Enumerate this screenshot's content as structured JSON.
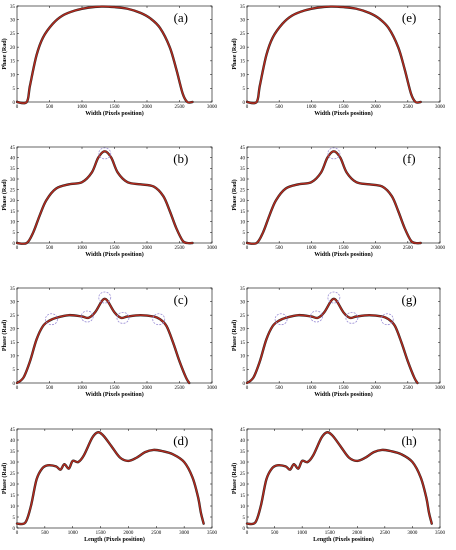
{
  "chart_data": [
    {
      "type": "line",
      "label": "(a)",
      "xlabel": "Width (Pixels position)",
      "ylabel": "Phase (Rad)",
      "xlim": [
        0,
        3000
      ],
      "ylim": [
        0,
        35
      ],
      "xticks": [
        0,
        500,
        1000,
        1500,
        2000,
        2500,
        3000
      ],
      "yticks": [
        0,
        5,
        10,
        15,
        20,
        25,
        30,
        35
      ],
      "series": [
        {
          "color": "#b22a1e",
          "x": [
            0,
            150,
            200,
            300,
            400,
            550,
            700,
            900,
            1100,
            1300,
            1500,
            1700,
            1900,
            2050,
            2200,
            2350,
            2450,
            2550,
            2620,
            2700
          ],
          "y": [
            0,
            0,
            6,
            17,
            23.5,
            28.5,
            31.5,
            33.4,
            34.4,
            34.8,
            34.6,
            34,
            32.5,
            30.5,
            27,
            20,
            12,
            3,
            0,
            0
          ]
        }
      ]
    },
    {
      "type": "line",
      "label": "(e)",
      "xlabel": "Width (Pixels position)",
      "ylabel": "Phase (Rad)",
      "xlim": [
        0,
        3000
      ],
      "ylim": [
        0,
        35
      ],
      "xticks": [
        0,
        500,
        1000,
        1500,
        2000,
        2500,
        3000
      ],
      "yticks": [
        0,
        5,
        10,
        15,
        20,
        25,
        30,
        35
      ],
      "series": [
        {
          "color": "#b22a1e",
          "x": [
            0,
            150,
            200,
            300,
            400,
            550,
            700,
            900,
            1100,
            1300,
            1500,
            1700,
            1900,
            2050,
            2200,
            2350,
            2450,
            2550,
            2620,
            2700
          ],
          "y": [
            0,
            0,
            6,
            17,
            23.5,
            28.5,
            31.5,
            33.4,
            34.4,
            34.8,
            34.6,
            34,
            32.5,
            30.5,
            27,
            20,
            12,
            3,
            0,
            0
          ]
        }
      ]
    },
    {
      "type": "line",
      "label": "(b)",
      "xlabel": "Width (Pixels position)",
      "ylabel": "Phase (Rad)",
      "xlim": [
        0,
        3000
      ],
      "ylim": [
        0,
        45
      ],
      "xticks": [
        0,
        500,
        1000,
        1500,
        2000,
        2500,
        3000
      ],
      "yticks": [
        0,
        5,
        10,
        15,
        20,
        25,
        30,
        35,
        40,
        45
      ],
      "series": [
        {
          "color": "#b22a1e",
          "x": [
            0,
            150,
            250,
            350,
            450,
            600,
            800,
            1000,
            1150,
            1250,
            1350,
            1450,
            1550,
            1700,
            1900,
            2100,
            2250,
            2350,
            2450,
            2550,
            2620,
            2700
          ],
          "y": [
            0,
            0,
            5,
            13,
            20,
            25.5,
            27.5,
            28.5,
            33,
            40,
            43,
            40,
            33,
            28.5,
            27.5,
            26.5,
            22,
            15,
            7,
            1,
            0,
            0
          ]
        }
      ],
      "circles": [
        {
          "x": 1350,
          "y": 42
        }
      ]
    },
    {
      "type": "line",
      "label": "(f)",
      "xlabel": "Width (Pixels position)",
      "ylabel": "Phase (Rad)",
      "xlim": [
        0,
        3000
      ],
      "ylim": [
        0,
        45
      ],
      "xticks": [
        0,
        500,
        1000,
        1500,
        2000,
        2500,
        3000
      ],
      "yticks": [
        0,
        5,
        10,
        15,
        20,
        25,
        30,
        35,
        40,
        45
      ],
      "series": [
        {
          "color": "#b22a1e",
          "x": [
            0,
            150,
            250,
            350,
            450,
            600,
            800,
            1000,
            1150,
            1250,
            1350,
            1450,
            1550,
            1700,
            1900,
            2100,
            2250,
            2350,
            2450,
            2550,
            2620,
            2700
          ],
          "y": [
            0,
            0,
            5,
            13,
            20,
            25.5,
            27.5,
            28.5,
            33,
            40,
            43,
            40,
            33,
            28.5,
            27.5,
            26.5,
            22,
            15,
            7,
            1,
            0,
            0
          ]
        }
      ],
      "circles": [
        {
          "x": 1350,
          "y": 42
        }
      ]
    },
    {
      "type": "line",
      "label": "(c)",
      "xlabel": "Width (Pixels position)",
      "ylabel": "Phase (Rad)",
      "xlim": [
        0,
        3000
      ],
      "ylim": [
        0,
        35
      ],
      "xticks": [
        0,
        500,
        1000,
        1500,
        2000,
        2500,
        3000
      ],
      "yticks": [
        0,
        5,
        10,
        15,
        20,
        25,
        30,
        35
      ],
      "series": [
        {
          "color": "#b22a1e",
          "x": [
            0,
            100,
            200,
            300,
            400,
            500,
            600,
            800,
            1000,
            1100,
            1200,
            1300,
            1350,
            1400,
            1500,
            1600,
            1700,
            1900,
            2100,
            2200,
            2300,
            2400,
            2500,
            2600,
            2650
          ],
          "y": [
            0,
            2,
            8,
            16,
            21,
            23,
            24,
            25,
            24.5,
            24,
            26,
            30,
            31,
            30,
            26,
            24,
            24.5,
            25,
            24.5,
            23.5,
            21,
            15,
            8,
            2,
            0
          ]
        }
      ],
      "circles": [
        {
          "x": 530,
          "y": 23.5
        },
        {
          "x": 1080,
          "y": 24.5
        },
        {
          "x": 1350,
          "y": 31.5
        },
        {
          "x": 1630,
          "y": 24
        },
        {
          "x": 2180,
          "y": 23.5
        }
      ]
    },
    {
      "type": "line",
      "label": "(g)",
      "xlabel": "Width (Pixels position)",
      "ylabel": "Phase (Rad)",
      "xlim": [
        0,
        3000
      ],
      "ylim": [
        0,
        35
      ],
      "xticks": [
        0,
        500,
        1000,
        1500,
        2000,
        2500,
        3000
      ],
      "yticks": [
        0,
        5,
        10,
        15,
        20,
        25,
        30,
        35
      ],
      "series": [
        {
          "color": "#b22a1e",
          "x": [
            0,
            100,
            200,
            300,
            400,
            500,
            600,
            800,
            1000,
            1100,
            1200,
            1300,
            1350,
            1400,
            1500,
            1600,
            1700,
            1900,
            2100,
            2200,
            2300,
            2400,
            2500,
            2600,
            2650
          ],
          "y": [
            0,
            2,
            8,
            16,
            21,
            23,
            24,
            25,
            24.5,
            24,
            26,
            30,
            31,
            30,
            26,
            24,
            24.5,
            25,
            24.5,
            23.5,
            21,
            15,
            8,
            2,
            0
          ]
        }
      ],
      "circles": [
        {
          "x": 530,
          "y": 23.5
        },
        {
          "x": 1080,
          "y": 24.5
        },
        {
          "x": 1350,
          "y": 31.5
        },
        {
          "x": 1630,
          "y": 24
        },
        {
          "x": 2180,
          "y": 23.5
        }
      ]
    },
    {
      "type": "line",
      "label": "(d)",
      "xlabel": "Length (Pixels position)",
      "ylabel": "Phase (Rad)",
      "xlim": [
        0,
        3500
      ],
      "ylim": [
        0,
        45
      ],
      "xticks": [
        0,
        500,
        1000,
        1500,
        2000,
        2500,
        3000,
        3500
      ],
      "yticks": [
        0,
        5,
        10,
        15,
        20,
        25,
        30,
        35,
        40,
        45
      ],
      "series": [
        {
          "color": "#b22a1e",
          "x": [
            0,
            150,
            250,
            350,
            450,
            550,
            700,
            780,
            850,
            930,
            1000,
            1100,
            1200,
            1350,
            1450,
            1550,
            1700,
            1850,
            2000,
            2150,
            2300,
            2450,
            2600,
            2800,
            3000,
            3150,
            3250,
            3300,
            3350
          ],
          "y": [
            2,
            2.5,
            10,
            22,
            27,
            28.5,
            28,
            26.5,
            29,
            27,
            30.5,
            30,
            33,
            41,
            43.5,
            42,
            37,
            32,
            30.5,
            32,
            34.5,
            35.5,
            35,
            33.5,
            30,
            23,
            14,
            7,
            2
          ]
        }
      ]
    },
    {
      "type": "line",
      "label": "(h)",
      "xlabel": "Length (Pixels position)",
      "ylabel": "Phase (Rad)",
      "xlim": [
        0,
        3500
      ],
      "ylim": [
        0,
        45
      ],
      "xticks": [
        0,
        500,
        1000,
        1500,
        2000,
        2500,
        3000,
        3500
      ],
      "yticks": [
        0,
        5,
        10,
        15,
        20,
        25,
        30,
        35,
        40,
        45
      ],
      "series": [
        {
          "color": "#b22a1e",
          "x": [
            0,
            150,
            250,
            350,
            450,
            550,
            700,
            780,
            850,
            930,
            1000,
            1100,
            1200,
            1350,
            1450,
            1550,
            1700,
            1850,
            2000,
            2150,
            2300,
            2450,
            2600,
            2800,
            3000,
            3150,
            3250,
            3300,
            3350
          ],
          "y": [
            2,
            2.5,
            10,
            22,
            27,
            28.5,
            28,
            26.5,
            29,
            27,
            30.5,
            30,
            33,
            41,
            43.5,
            42,
            37,
            32,
            30.5,
            32,
            34.5,
            35.5,
            35,
            33.5,
            30,
            23,
            14,
            7,
            2
          ]
        }
      ]
    }
  ]
}
